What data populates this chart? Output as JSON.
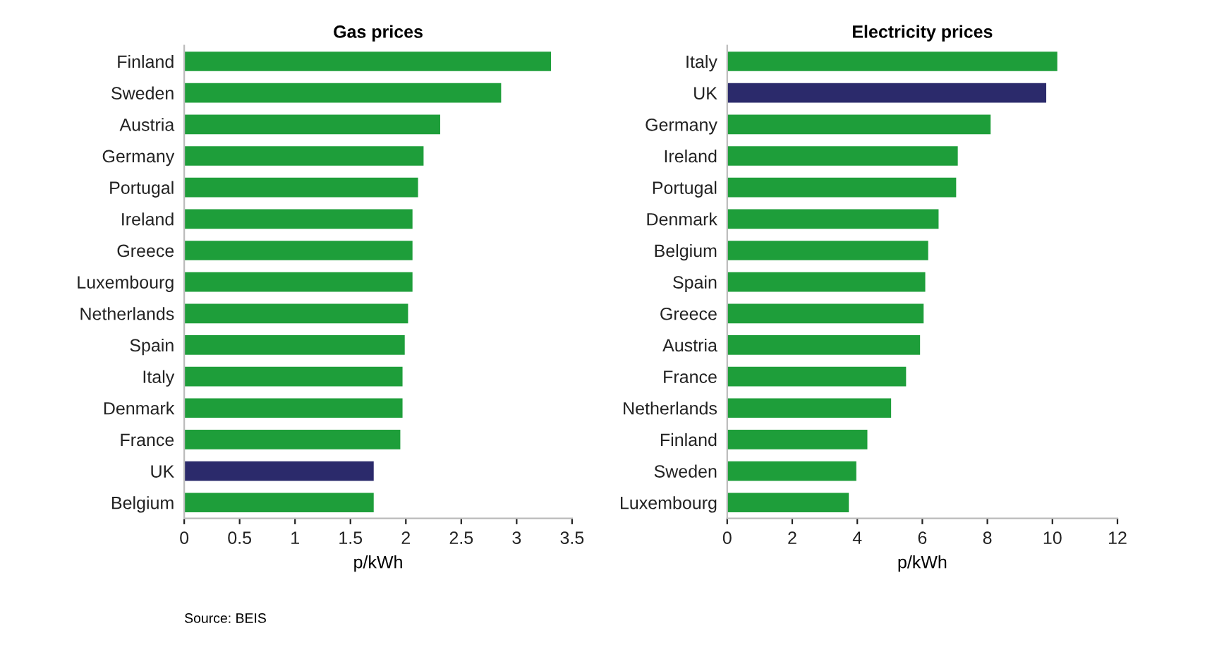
{
  "chart_data": [
    {
      "type": "bar",
      "orientation": "horizontal",
      "title": "Gas prices",
      "xlabel": "p/kWh",
      "categories": [
        "Finland",
        "Sweden",
        "Austria",
        "Germany",
        "Portugal",
        "Ireland",
        "Greece",
        "Luxembourg",
        "Netherlands",
        "Spain",
        "Italy",
        "Denmark",
        "France",
        "UK",
        "Belgium"
      ],
      "values": [
        3.31,
        2.86,
        2.31,
        2.16,
        2.11,
        2.06,
        2.06,
        2.06,
        2.02,
        1.99,
        1.97,
        1.97,
        1.95,
        1.71,
        1.71
      ],
      "colors": [
        "#1e9e3a",
        "#1e9e3a",
        "#1e9e3a",
        "#1e9e3a",
        "#1e9e3a",
        "#1e9e3a",
        "#1e9e3a",
        "#1e9e3a",
        "#1e9e3a",
        "#1e9e3a",
        "#1e9e3a",
        "#1e9e3a",
        "#1e9e3a",
        "#2b2a6b",
        "#1e9e3a"
      ],
      "xlim": [
        0,
        3.5
      ],
      "xticks": [
        0,
        0.5,
        1,
        1.5,
        2,
        2.5,
        3,
        3.5
      ],
      "grid": false,
      "legend": false,
      "annotations": [
        "Source: BEIS"
      ]
    },
    {
      "type": "bar",
      "orientation": "horizontal",
      "title": "Electricity prices",
      "xlabel": "p/kWh",
      "categories": [
        "Italy",
        "UK",
        "Germany",
        "Ireland",
        "Portugal",
        "Denmark",
        "Belgium",
        "Spain",
        "Greece",
        "Austria",
        "France",
        "Netherlands",
        "Finland",
        "Sweden",
        "Luxembourg"
      ],
      "values": [
        10.15,
        9.81,
        8.1,
        7.09,
        7.04,
        6.5,
        6.18,
        6.09,
        6.04,
        5.93,
        5.5,
        5.04,
        4.31,
        3.97,
        3.74
      ],
      "colors": [
        "#1e9e3a",
        "#2b2a6b",
        "#1e9e3a",
        "#1e9e3a",
        "#1e9e3a",
        "#1e9e3a",
        "#1e9e3a",
        "#1e9e3a",
        "#1e9e3a",
        "#1e9e3a",
        "#1e9e3a",
        "#1e9e3a",
        "#1e9e3a",
        "#1e9e3a",
        "#1e9e3a"
      ],
      "xlim": [
        0,
        12
      ],
      "xticks": [
        0,
        2,
        4,
        6,
        8,
        10,
        12
      ],
      "grid": false,
      "legend": false
    }
  ]
}
